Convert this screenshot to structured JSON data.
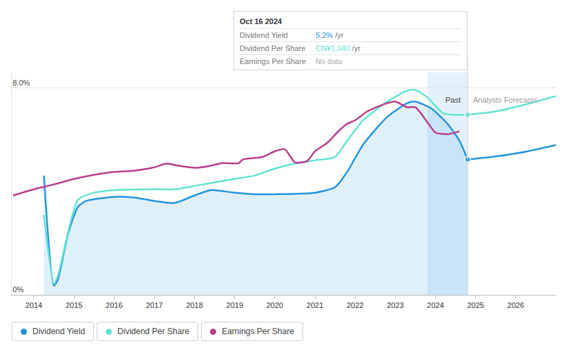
{
  "chart_data": {
    "type": "line",
    "xlim": [
      2013.45,
      2027.0
    ],
    "xticks": [
      2014,
      2015,
      2016,
      2017,
      2018,
      2019,
      2020,
      2021,
      2022,
      2023,
      2024,
      2025,
      2026
    ],
    "ylim": [
      0,
      8.6
    ],
    "yticks": [
      {
        "value": 0,
        "label": "0%"
      },
      {
        "value": 8,
        "label": "8.0%"
      }
    ],
    "grid": true,
    "legend": "bottom",
    "shaded_range": [
      2023.8,
      2024.8
    ],
    "annotations": [
      "Past",
      "Analysts Forecasts"
    ],
    "tooltip": {
      "date": "Oct 16 2024",
      "rows": [
        {
          "label": "Dividend Yield",
          "value": "5.2%",
          "unit": "/yr"
        },
        {
          "label": "Dividend Per Share",
          "value": "CN¥1.040",
          "unit": "/yr"
        },
        {
          "label": "Earnings Per Share",
          "value": "No data"
        }
      ]
    },
    "series": [
      {
        "name": "Dividend Yield",
        "color": "#2394df",
        "type": "area",
        "x": [
          2014.25,
          2014.5,
          2014.6,
          2014.85,
          2015.1,
          2015.3,
          2016,
          2016.5,
          2017,
          2017.5,
          2018,
          2018.4,
          2019,
          2019.5,
          2020,
          2021,
          2021.5,
          2021.8,
          2022.2,
          2022.8,
          2023.3,
          2023.5,
          2023.9,
          2024.3,
          2024.6,
          2024.8
        ],
        "values": [
          4.61,
          0.35,
          0.6,
          2.35,
          3.41,
          3.63,
          3.79,
          3.76,
          3.63,
          3.55,
          3.84,
          4.05,
          3.95,
          3.89,
          3.89,
          3.95,
          4.16,
          4.75,
          5.81,
          6.88,
          7.41,
          7.47,
          7.2,
          6.61,
          5.95,
          5.23
        ],
        "forecast": {
          "x": [
            2024.8,
            2025.5,
            2026.3,
            2027.0
          ],
          "values": [
            5.23,
            5.35,
            5.55,
            5.79
          ]
        }
      },
      {
        "name": "Dividend Per Share",
        "color": "#62e3d2",
        "type": "line",
        "x": [
          2014.25,
          2014.5,
          2014.6,
          2015.1,
          2015.5,
          2016,
          2017,
          2017.5,
          2018,
          2019,
          2019.5,
          2020,
          2020.5,
          2021,
          2021.5,
          2021.8,
          2022.2,
          2022.8,
          2023.3,
          2023.5,
          2023.8,
          2024.2,
          2024.8
        ],
        "values": [
          3.09,
          0.43,
          0.75,
          3.68,
          3.95,
          4.05,
          4.08,
          4.08,
          4.21,
          4.48,
          4.61,
          4.88,
          5.07,
          5.2,
          5.33,
          5.95,
          6.75,
          7.47,
          7.89,
          7.92,
          7.63,
          7.01,
          6.96
        ],
        "forecast": {
          "x": [
            2024.8,
            2025.5,
            2026.3,
            2027.0
          ],
          "values": [
            6.96,
            7.09,
            7.38,
            7.68
          ]
        }
      },
      {
        "name": "Earnings Per Share",
        "color": "#b83d8a",
        "type": "line",
        "x": [
          2013.48,
          2014,
          2014.5,
          2015,
          2015.5,
          2016,
          2016.5,
          2017,
          2017.3,
          2017.6,
          2018,
          2018.3,
          2018.7,
          2019.1,
          2019.2,
          2019.7,
          2020,
          2020.25,
          2020.5,
          2020.8,
          2021,
          2021.3,
          2021.6,
          2021.8,
          2022,
          2022.3,
          2022.7,
          2023,
          2023.3,
          2023.5,
          2023.8,
          2024,
          2024.3,
          2024.6
        ],
        "values": [
          3.84,
          4.08,
          4.27,
          4.48,
          4.64,
          4.75,
          4.8,
          4.93,
          5.07,
          4.99,
          4.91,
          4.96,
          5.09,
          5.09,
          5.23,
          5.33,
          5.55,
          5.63,
          5.12,
          5.17,
          5.55,
          5.87,
          6.35,
          6.61,
          6.75,
          7.09,
          7.36,
          7.47,
          7.25,
          7.25,
          6.67,
          6.27,
          6.21,
          6.32
        ]
      }
    ]
  }
}
